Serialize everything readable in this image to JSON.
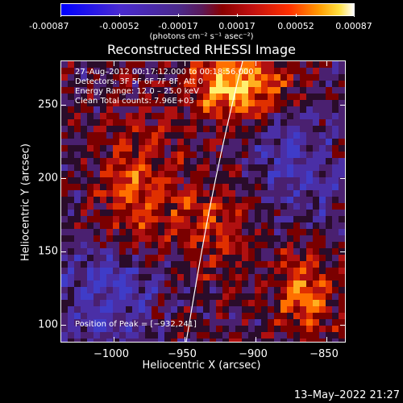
{
  "colorbar": {
    "ticks": [
      "-0.00087",
      "-0.00052",
      "-0.00017",
      "0.00017",
      "0.00052",
      "0.00087"
    ],
    "unit": "(photons cm⁻² s⁻¹ asec⁻²)"
  },
  "plot": {
    "title": "Reconstructed RHESSI Image",
    "xlabel": "Heliocentric X (arcsec)",
    "ylabel": "Heliocentric Y (arcsec)",
    "xticks": [
      "−1000",
      "−950",
      "−900",
      "−850"
    ],
    "yticks": [
      "250",
      "200",
      "150",
      "100"
    ],
    "info": {
      "line1": "27–Aug–2012 00:17:12.000 to 00:18:56.000",
      "line2": "Detectors: 3F 5F 6F 7F 8F, Att 0",
      "line3": "Energy Range: 12.0 – 25.0 keV",
      "line4": "Clean     Total counts: 7.96E+03"
    },
    "peak": "Position of Peak = [−932,241]"
  },
  "footer": {
    "timestamp": "13–May–2022 21:27"
  },
  "chart_data": {
    "type": "heatmap",
    "title": "Reconstructed RHESSI Image",
    "xlabel": "Heliocentric X (arcsec)",
    "ylabel": "Heliocentric Y (arcsec)",
    "xlim": [
      -1030,
      -840
    ],
    "ylim": [
      92,
      284
    ],
    "colorbar_range": [
      -0.00087,
      0.00087
    ],
    "peak": [
      -932,
      241
    ],
    "colors": {
      "negative": "#3a2aa0",
      "zero": "#2a0a30",
      "positive_low": "#a00000",
      "positive_mid": "#ff4000",
      "positive_high": "#ffd040"
    }
  }
}
